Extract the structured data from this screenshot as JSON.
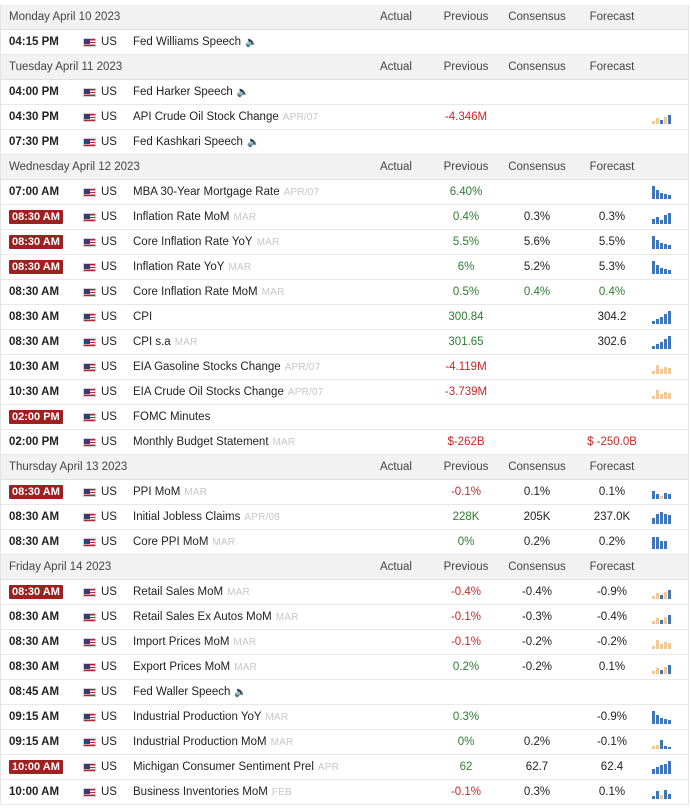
{
  "columns": {
    "actual": "Actual",
    "previous": "Previous",
    "consensus": "Consensus",
    "forecast": "Forecast"
  },
  "days": [
    {
      "date": "Monday April 10 2023",
      "events": [
        {
          "time": "04:15 PM",
          "hl": false,
          "country": "US",
          "name": "Fed Williams Speech",
          "speech": true,
          "period": "",
          "actual": "",
          "previous": "",
          "prev_c": "neu",
          "consensus": "",
          "cons_c": "neu",
          "forecast": "",
          "fore_c": "neu",
          "spark": null
        }
      ]
    },
    {
      "date": "Tuesday April 11 2023",
      "events": [
        {
          "time": "04:00 PM",
          "hl": false,
          "country": "US",
          "name": "Fed Harker Speech",
          "speech": true,
          "period": "",
          "actual": "",
          "previous": "",
          "prev_c": "neu",
          "consensus": "",
          "cons_c": "neu",
          "forecast": "",
          "fore_c": "neu",
          "spark": null
        },
        {
          "time": "04:30 PM",
          "hl": false,
          "country": "US",
          "name": "API Crude Oil Stock Change",
          "speech": false,
          "period": "APR/07",
          "actual": "",
          "previous": "-4.346M",
          "prev_c": "neg",
          "consensus": "",
          "cons_c": "neu",
          "forecast": "",
          "fore_c": "neu",
          "spark": "tan-mix"
        },
        {
          "time": "07:30 PM",
          "hl": false,
          "country": "US",
          "name": "Fed Kashkari Speech",
          "speech": true,
          "period": "",
          "actual": "",
          "previous": "",
          "prev_c": "neu",
          "consensus": "",
          "cons_c": "neu",
          "forecast": "",
          "fore_c": "neu",
          "spark": null
        }
      ]
    },
    {
      "date": "Wednesday April 12 2023",
      "events": [
        {
          "time": "07:00 AM",
          "hl": false,
          "country": "US",
          "name": "MBA 30-Year Mortgage Rate",
          "speech": false,
          "period": "APR/07",
          "actual": "",
          "previous": "6.40%",
          "prev_c": "pos",
          "consensus": "",
          "cons_c": "neu",
          "forecast": "",
          "fore_c": "neu",
          "spark": "down"
        },
        {
          "time": "08:30 AM",
          "hl": true,
          "country": "US",
          "name": "Inflation Rate MoM",
          "speech": false,
          "period": "MAR",
          "actual": "",
          "previous": "0.4%",
          "prev_c": "pos",
          "consensus": "0.3%",
          "cons_c": "neu",
          "forecast": "0.3%",
          "fore_c": "neu",
          "spark": "mixed"
        },
        {
          "time": "08:30 AM",
          "hl": true,
          "country": "US",
          "name": "Core Inflation Rate YoY",
          "speech": false,
          "period": "MAR",
          "actual": "",
          "previous": "5.5%",
          "prev_c": "pos",
          "consensus": "5.6%",
          "cons_c": "neu",
          "forecast": "5.5%",
          "fore_c": "neu",
          "spark": "down"
        },
        {
          "time": "08:30 AM",
          "hl": true,
          "country": "US",
          "name": "Inflation Rate YoY",
          "speech": false,
          "period": "MAR",
          "actual": "",
          "previous": "6%",
          "prev_c": "pos",
          "consensus": "5.2%",
          "cons_c": "neu",
          "forecast": "5.3%",
          "fore_c": "neu",
          "spark": "down"
        },
        {
          "time": "08:30 AM",
          "hl": false,
          "country": "US",
          "name": "Core Inflation Rate MoM",
          "speech": false,
          "period": "MAR",
          "actual": "",
          "previous": "0.5%",
          "prev_c": "pos",
          "consensus": "0.4%",
          "cons_c": "pos",
          "forecast": "0.4%",
          "fore_c": "pos",
          "spark": null
        },
        {
          "time": "08:30 AM",
          "hl": false,
          "country": "US",
          "name": "CPI",
          "speech": false,
          "period": "",
          "actual": "",
          "previous": "300.84",
          "prev_c": "pos",
          "consensus": "",
          "cons_c": "neu",
          "forecast": "304.2",
          "fore_c": "neu",
          "spark": "up"
        },
        {
          "time": "08:30 AM",
          "hl": false,
          "country": "US",
          "name": "CPI s.a",
          "speech": false,
          "period": "MAR",
          "actual": "",
          "previous": "301.65",
          "prev_c": "pos",
          "consensus": "",
          "cons_c": "neu",
          "forecast": "302.6",
          "fore_c": "neu",
          "spark": "up"
        },
        {
          "time": "10:30 AM",
          "hl": false,
          "country": "US",
          "name": "EIA Gasoline Stocks Change",
          "speech": false,
          "period": "APR/07",
          "actual": "",
          "previous": "-4.119M",
          "prev_c": "neg",
          "consensus": "",
          "cons_c": "neu",
          "forecast": "",
          "fore_c": "neu",
          "spark": "tan"
        },
        {
          "time": "10:30 AM",
          "hl": false,
          "country": "US",
          "name": "EIA Crude Oil Stocks Change",
          "speech": false,
          "period": "APR/07",
          "actual": "",
          "previous": "-3.739M",
          "prev_c": "neg",
          "consensus": "",
          "cons_c": "neu",
          "forecast": "",
          "fore_c": "neu",
          "spark": "tan"
        },
        {
          "time": "02:00 PM",
          "hl": true,
          "country": "US",
          "name": "FOMC Minutes",
          "speech": false,
          "period": "",
          "actual": "",
          "previous": "",
          "prev_c": "neu",
          "consensus": "",
          "cons_c": "neu",
          "forecast": "",
          "fore_c": "neu",
          "spark": null
        },
        {
          "time": "02:00 PM",
          "hl": false,
          "country": "US",
          "name": "Monthly Budget Statement",
          "speech": false,
          "period": "MAR",
          "actual": "",
          "previous": "$-262B",
          "prev_c": "neg",
          "consensus": "",
          "cons_c": "neu",
          "forecast": "$ -250.0B",
          "fore_c": "neg",
          "spark": null
        }
      ]
    },
    {
      "date": "Thursday April 13 2023",
      "events": [
        {
          "time": "08:30 AM",
          "hl": true,
          "country": "US",
          "name": "PPI MoM",
          "speech": false,
          "period": "MAR",
          "actual": "",
          "previous": "-0.1%",
          "prev_c": "neg",
          "consensus": "0.1%",
          "cons_c": "neu",
          "forecast": "0.1%",
          "fore_c": "neu",
          "spark": "mixed2"
        },
        {
          "time": "08:30 AM",
          "hl": false,
          "country": "US",
          "name": "Initial Jobless Claims",
          "speech": false,
          "period": "APR/08",
          "actual": "",
          "previous": "228K",
          "prev_c": "pos",
          "consensus": "205K",
          "cons_c": "neu",
          "forecast": "237.0K",
          "fore_c": "neu",
          "spark": "flat"
        },
        {
          "time": "08:30 AM",
          "hl": false,
          "country": "US",
          "name": "Core PPI MoM",
          "speech": false,
          "period": "MAR",
          "actual": "",
          "previous": "0%",
          "prev_c": "pos",
          "consensus": "0.2%",
          "cons_c": "neu",
          "forecast": "0.2%",
          "fore_c": "neu",
          "spark": "down2"
        }
      ]
    },
    {
      "date": "Friday April 14 2023",
      "events": [
        {
          "time": "08:30 AM",
          "hl": true,
          "country": "US",
          "name": "Retail Sales MoM",
          "speech": false,
          "period": "MAR",
          "actual": "",
          "previous": "-0.4%",
          "prev_c": "neg",
          "consensus": "-0.4%",
          "cons_c": "neu",
          "forecast": "-0.9%",
          "fore_c": "neu",
          "spark": "tan-mix"
        },
        {
          "time": "08:30 AM",
          "hl": false,
          "country": "US",
          "name": "Retail Sales Ex Autos MoM",
          "speech": false,
          "period": "MAR",
          "actual": "",
          "previous": "-0.1%",
          "prev_c": "neg",
          "consensus": "-0.3%",
          "cons_c": "neu",
          "forecast": "-0.4%",
          "fore_c": "neu",
          "spark": "tan-mix"
        },
        {
          "time": "08:30 AM",
          "hl": false,
          "country": "US",
          "name": "Import Prices MoM",
          "speech": false,
          "period": "MAR",
          "actual": "",
          "previous": "-0.1%",
          "prev_c": "neg",
          "consensus": "-0.2%",
          "cons_c": "neu",
          "forecast": "-0.2%",
          "fore_c": "neu",
          "spark": "tan"
        },
        {
          "time": "08:30 AM",
          "hl": false,
          "country": "US",
          "name": "Export Prices MoM",
          "speech": false,
          "period": "MAR",
          "actual": "",
          "previous": "0.2%",
          "prev_c": "pos",
          "consensus": "-0.2%",
          "cons_c": "neu",
          "forecast": "0.1%",
          "fore_c": "neu",
          "spark": "tan-mix"
        },
        {
          "time": "08:45 AM",
          "hl": false,
          "country": "US",
          "name": "Fed Waller Speech",
          "speech": true,
          "period": "",
          "actual": "",
          "previous": "",
          "prev_c": "neu",
          "consensus": "",
          "cons_c": "neu",
          "forecast": "",
          "fore_c": "neu",
          "spark": null
        },
        {
          "time": "09:15 AM",
          "hl": false,
          "country": "US",
          "name": "Industrial Production YoY",
          "speech": false,
          "period": "MAR",
          "actual": "",
          "previous": "0.3%",
          "prev_c": "pos",
          "consensus": "",
          "cons_c": "neu",
          "forecast": "-0.9%",
          "fore_c": "neu",
          "spark": "down"
        },
        {
          "time": "09:15 AM",
          "hl": false,
          "country": "US",
          "name": "Industrial Production MoM",
          "speech": false,
          "period": "MAR",
          "actual": "",
          "previous": "0%",
          "prev_c": "pos",
          "consensus": "0.2%",
          "cons_c": "neu",
          "forecast": "-0.1%",
          "fore_c": "neu",
          "spark": "mixed3"
        },
        {
          "time": "10:00 AM",
          "hl": true,
          "country": "US",
          "name": "Michigan Consumer Sentiment Prel",
          "speech": false,
          "period": "APR",
          "actual": "",
          "previous": "62",
          "prev_c": "pos",
          "consensus": "62.7",
          "cons_c": "neu",
          "forecast": "62.4",
          "fore_c": "neu",
          "spark": "up2"
        },
        {
          "time": "10:00 AM",
          "hl": false,
          "country": "US",
          "name": "Business Inventories MoM",
          "speech": false,
          "period": "FEB",
          "actual": "",
          "previous": "-0.1%",
          "prev_c": "neg",
          "consensus": "0.3%",
          "cons_c": "neu",
          "forecast": "0.1%",
          "fore_c": "neu",
          "spark": "mixed4"
        }
      ]
    }
  ]
}
